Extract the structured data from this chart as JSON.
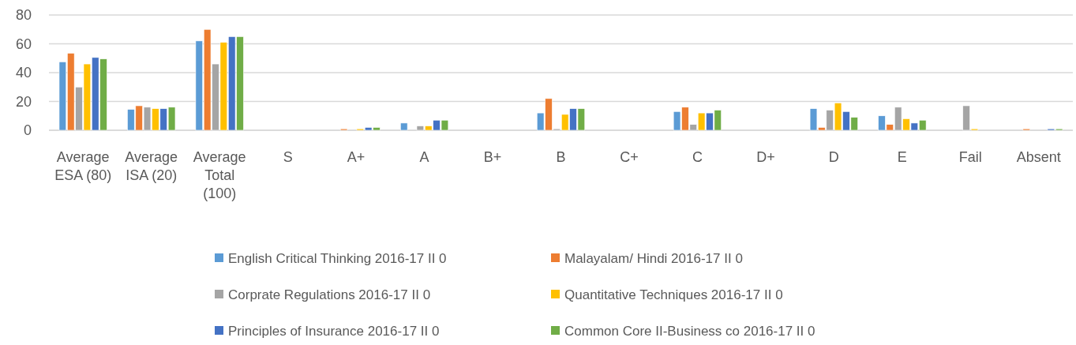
{
  "chart_data": {
    "type": "bar",
    "categories": [
      "Average ESA (80)",
      "Average ISA (20)",
      "Average Total (100)",
      "S",
      "A+",
      "A",
      "B+",
      "B",
      "C+",
      "C",
      "D+",
      "D",
      "E",
      "Fail",
      "Absent"
    ],
    "series": [
      {
        "name": "English Critical Thinking 2016-17 II 0",
        "color": "#5b9bd5",
        "values": [
          47.5,
          14.5,
          62,
          0,
          0,
          5,
          0,
          12,
          0,
          13,
          0,
          15,
          10,
          0,
          0
        ]
      },
      {
        "name": "Malayalam/ Hindi 2016-17 II 0",
        "color": "#ed7d31",
        "values": [
          53.5,
          17,
          70,
          0,
          1,
          0,
          0,
          22,
          0,
          16,
          0,
          2,
          4,
          0,
          1
        ]
      },
      {
        "name": "Corprate Regulations 2016-17 II 0",
        "color": "#a5a5a5",
        "values": [
          30,
          16,
          46,
          0,
          0,
          3,
          0,
          1,
          0,
          4,
          0,
          14,
          16,
          17,
          0
        ]
      },
      {
        "name": "Quantitative Techniques 2016-17 II 0",
        "color": "#ffc000",
        "values": [
          46,
          15,
          61,
          0,
          1,
          3,
          0,
          11,
          0,
          12,
          0,
          19,
          8,
          1,
          0
        ]
      },
      {
        "name": "Principles of Insurance  2016-17 II 0",
        "color": "#4472c4",
        "values": [
          50.5,
          15,
          65,
          0,
          2,
          7,
          0,
          15,
          0,
          12,
          0,
          13,
          5,
          0,
          1
        ]
      },
      {
        "name": "Common Core II-Business co 2016-17 II 0",
        "color": "#70ad47",
        "values": [
          49.5,
          16,
          65,
          0,
          2,
          7,
          0,
          15,
          0,
          14,
          0,
          9,
          7,
          0,
          1
        ]
      }
    ],
    "ylim": [
      0,
      80
    ],
    "yticks": [
      0,
      20,
      40,
      60,
      80
    ],
    "grid": "y",
    "legend": "bottom"
  }
}
